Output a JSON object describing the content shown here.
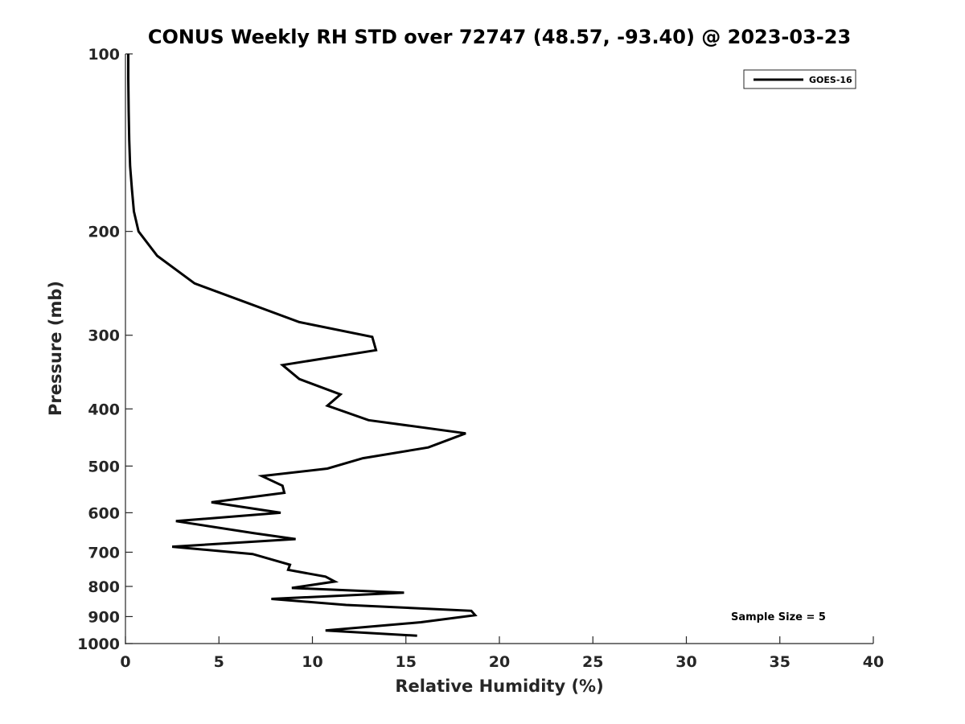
{
  "chart_data": {
    "type": "line",
    "title": "CONUS Weekly RH STD over 72747 (48.57, -93.40) @ 2023-03-23",
    "xlabel": "Relative Humidity (%)",
    "ylabel": "Pressure (mb)",
    "xlim": [
      0,
      40
    ],
    "ylim": [
      100,
      1000
    ],
    "y_scale": "log",
    "y_reversed": true,
    "x_ticks": [
      0,
      5,
      10,
      15,
      20,
      25,
      30,
      35,
      40
    ],
    "x_tick_labels": [
      "0",
      "5",
      "10",
      "15",
      "20",
      "25",
      "30",
      "35",
      "40"
    ],
    "y_ticks": [
      100,
      200,
      300,
      400,
      500,
      600,
      700,
      800,
      900,
      1000
    ],
    "y_tick_labels": [
      "100",
      "200",
      "300",
      "400",
      "500",
      "600",
      "700",
      "800",
      "900",
      "1000"
    ],
    "grid": false,
    "legend_position": "top-right",
    "annotation": "Sample Size = 5",
    "line_color": "#000000",
    "series": [
      {
        "name": "GOES-16",
        "x": [
          0.15,
          0.15,
          0.17,
          0.2,
          0.25,
          0.35,
          0.45,
          0.7,
          1.7,
          3.7,
          6.6,
          9.3,
          13.2,
          13.4,
          8.4,
          9.3,
          11.5,
          10.8,
          13.0,
          18.2,
          16.2,
          12.7,
          10.8,
          7.3,
          8.4,
          8.5,
          4.6,
          8.3,
          2.7,
          6.9,
          9.1,
          2.5,
          6.8,
          8.8,
          8.7,
          10.7,
          11.2,
          8.9,
          14.9,
          7.8,
          11.8,
          18.5,
          18.7,
          15.8,
          10.7,
          15.6
        ],
        "y": [
          100,
          110,
          125,
          140,
          155,
          170,
          185,
          200,
          220,
          245,
          265,
          285,
          302,
          318,
          337,
          356,
          378,
          395,
          418,
          440,
          465,
          485,
          505,
          520,
          540,
          555,
          576,
          600,
          620,
          650,
          665,
          685,
          705,
          735,
          750,
          770,
          785,
          805,
          820,
          840,
          860,
          880,
          895,
          920,
          950,
          970
        ]
      }
    ]
  }
}
